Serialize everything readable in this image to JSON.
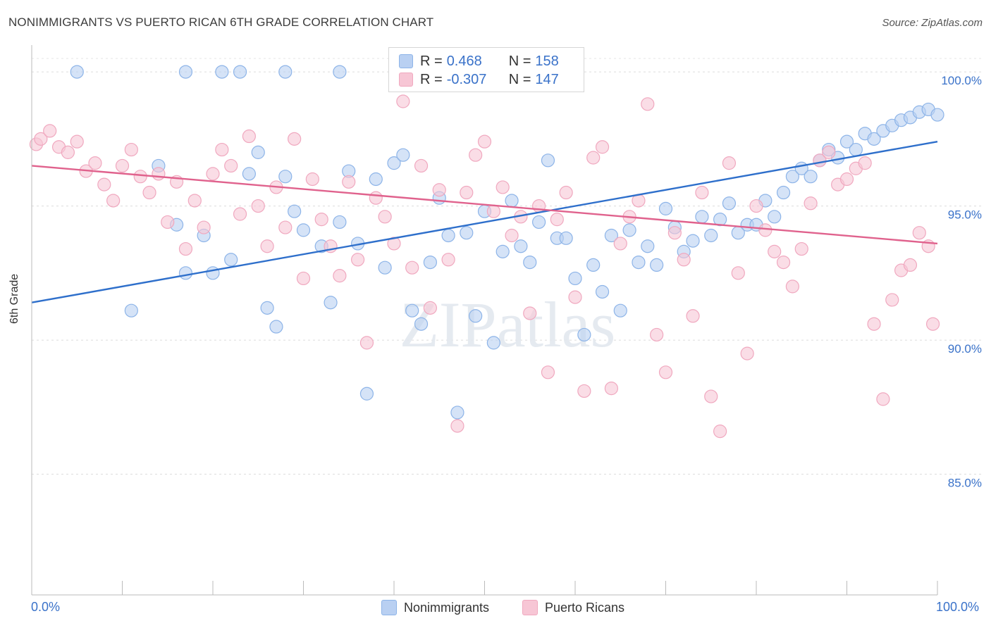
{
  "chart_data": {
    "type": "scatter",
    "title": "NONIMMIGRANTS VS PUERTO RICAN 6TH GRADE CORRELATION CHART",
    "source": "Source: ZipAtlas.com",
    "ylabel": "6th Grade",
    "xlabel": "",
    "xlim": [
      0,
      100
    ],
    "ylim": [
      80.5,
      101
    ],
    "x_tick_labels": [
      "0.0%",
      "100.0%"
    ],
    "y_ticks": [
      85,
      90,
      95,
      100
    ],
    "y_tick_labels": [
      "85.0%",
      "90.0%",
      "95.0%",
      "100.0%"
    ],
    "watermark": "ZIPatlas",
    "legend": {
      "rows": [
        {
          "r_label": "R =",
          "r_value": "0.468",
          "n_label": "N =",
          "n_value": "158"
        },
        {
          "r_label": "R =",
          "r_value": "-0.307",
          "n_label": "N =",
          "n_value": "147"
        }
      ]
    },
    "series": [
      {
        "name": "Nonimmigrants",
        "color": "#8db4e8",
        "fill": "#b9d0f2",
        "line_color": "#2e6fcb",
        "trend": {
          "x": [
            0,
            100
          ],
          "y": [
            91.4,
            97.4
          ]
        },
        "points": [
          [
            5,
            100
          ],
          [
            17,
            100
          ],
          [
            21,
            100
          ],
          [
            23,
            100
          ],
          [
            28,
            100
          ],
          [
            34,
            100
          ],
          [
            11,
            91.1
          ],
          [
            14,
            96.5
          ],
          [
            16,
            94.3
          ],
          [
            17,
            92.5
          ],
          [
            19,
            93.9
          ],
          [
            20,
            92.5
          ],
          [
            22,
            93.0
          ],
          [
            24,
            96.2
          ],
          [
            25,
            97.0
          ],
          [
            26,
            91.2
          ],
          [
            27,
            90.5
          ],
          [
            28,
            96.1
          ],
          [
            29,
            94.8
          ],
          [
            30,
            94.1
          ],
          [
            32,
            93.5
          ],
          [
            33,
            91.4
          ],
          [
            34,
            94.4
          ],
          [
            35,
            96.3
          ],
          [
            36,
            93.6
          ],
          [
            37,
            88.0
          ],
          [
            38,
            96.0
          ],
          [
            39,
            92.7
          ],
          [
            40,
            96.6
          ],
          [
            41,
            96.9
          ],
          [
            42,
            91.1
          ],
          [
            43,
            90.6
          ],
          [
            44,
            92.9
          ],
          [
            45,
            95.3
          ],
          [
            46,
            93.9
          ],
          [
            47,
            87.3
          ],
          [
            48,
            94.0
          ],
          [
            49,
            90.9
          ],
          [
            50,
            94.8
          ],
          [
            51,
            89.9
          ],
          [
            52,
            93.3
          ],
          [
            53,
            95.2
          ],
          [
            54,
            93.5
          ],
          [
            55,
            92.9
          ],
          [
            56,
            94.4
          ],
          [
            57,
            96.7
          ],
          [
            58,
            93.8
          ],
          [
            59,
            93.8
          ],
          [
            60,
            92.3
          ],
          [
            61,
            90.2
          ],
          [
            62,
            92.8
          ],
          [
            63,
            91.8
          ],
          [
            64,
            93.9
          ],
          [
            65,
            91.1
          ],
          [
            66,
            94.1
          ],
          [
            67,
            92.9
          ],
          [
            68,
            93.5
          ],
          [
            69,
            92.8
          ],
          [
            70,
            94.9
          ],
          [
            71,
            94.2
          ],
          [
            72,
            93.3
          ],
          [
            73,
            93.7
          ],
          [
            74,
            94.6
          ],
          [
            75,
            93.9
          ],
          [
            76,
            94.5
          ],
          [
            77,
            95.1
          ],
          [
            78,
            94.0
          ],
          [
            79,
            94.3
          ],
          [
            80,
            94.3
          ],
          [
            81,
            95.2
          ],
          [
            82,
            94.6
          ],
          [
            83,
            95.5
          ],
          [
            84,
            96.1
          ],
          [
            85,
            96.4
          ],
          [
            86,
            96.1
          ],
          [
            87,
            96.7
          ],
          [
            88,
            97.1
          ],
          [
            89,
            96.8
          ],
          [
            90,
            97.4
          ],
          [
            91,
            97.1
          ],
          [
            92,
            97.7
          ],
          [
            93,
            97.5
          ],
          [
            94,
            97.8
          ],
          [
            95,
            98.0
          ],
          [
            96,
            98.2
          ],
          [
            97,
            98.3
          ],
          [
            98,
            98.5
          ],
          [
            99,
            98.6
          ],
          [
            100,
            98.4
          ]
        ]
      },
      {
        "name": "Puerto Ricans",
        "color": "#f0a8bf",
        "fill": "#f7c6d5",
        "line_color": "#e0628d",
        "trend": {
          "x": [
            0,
            100
          ],
          "y": [
            96.5,
            93.6
          ]
        },
        "points": [
          [
            0.5,
            97.3
          ],
          [
            1,
            97.5
          ],
          [
            2,
            97.8
          ],
          [
            3,
            97.2
          ],
          [
            4,
            97.0
          ],
          [
            5,
            97.4
          ],
          [
            6,
            96.3
          ],
          [
            7,
            96.6
          ],
          [
            8,
            95.8
          ],
          [
            9,
            95.2
          ],
          [
            10,
            96.5
          ],
          [
            11,
            97.1
          ],
          [
            12,
            96.1
          ],
          [
            13,
            95.5
          ],
          [
            14,
            96.2
          ],
          [
            15,
            94.4
          ],
          [
            16,
            95.9
          ],
          [
            17,
            93.4
          ],
          [
            18,
            95.2
          ],
          [
            19,
            94.2
          ],
          [
            20,
            96.2
          ],
          [
            21,
            97.1
          ],
          [
            22,
            96.5
          ],
          [
            23,
            94.7
          ],
          [
            24,
            97.6
          ],
          [
            25,
            95.0
          ],
          [
            26,
            93.5
          ],
          [
            27,
            95.7
          ],
          [
            28,
            94.2
          ],
          [
            29,
            97.5
          ],
          [
            30,
            92.3
          ],
          [
            31,
            96.0
          ],
          [
            32,
            94.5
          ],
          [
            33,
            93.5
          ],
          [
            34,
            92.4
          ],
          [
            35,
            95.9
          ],
          [
            36,
            93.0
          ],
          [
            37,
            89.9
          ],
          [
            38,
            95.3
          ],
          [
            39,
            94.6
          ],
          [
            40,
            93.6
          ],
          [
            41,
            98.9
          ],
          [
            42,
            92.7
          ],
          [
            43,
            96.5
          ],
          [
            44,
            91.2
          ],
          [
            45,
            95.6
          ],
          [
            46,
            93.0
          ],
          [
            47,
            86.8
          ],
          [
            48,
            95.5
          ],
          [
            49,
            96.9
          ],
          [
            50,
            97.4
          ],
          [
            51,
            94.8
          ],
          [
            52,
            95.7
          ],
          [
            53,
            93.9
          ],
          [
            54,
            94.6
          ],
          [
            55,
            91.0
          ],
          [
            56,
            95.0
          ],
          [
            57,
            88.8
          ],
          [
            58,
            94.5
          ],
          [
            59,
            95.5
          ],
          [
            60,
            91.6
          ],
          [
            61,
            88.1
          ],
          [
            62,
            96.8
          ],
          [
            63,
            97.2
          ],
          [
            64,
            88.2
          ],
          [
            65,
            93.6
          ],
          [
            66,
            94.6
          ],
          [
            67,
            95.2
          ],
          [
            68,
            98.8
          ],
          [
            69,
            90.2
          ],
          [
            70,
            88.8
          ],
          [
            71,
            94.0
          ],
          [
            72,
            93.0
          ],
          [
            73,
            90.9
          ],
          [
            74,
            95.5
          ],
          [
            75,
            87.9
          ],
          [
            76,
            86.6
          ],
          [
            77,
            96.6
          ],
          [
            78,
            92.5
          ],
          [
            79,
            89.5
          ],
          [
            80,
            95.0
          ],
          [
            81,
            94.1
          ],
          [
            82,
            93.3
          ],
          [
            83,
            92.9
          ],
          [
            84,
            92.0
          ],
          [
            85,
            93.4
          ],
          [
            86,
            95.1
          ],
          [
            87,
            96.7
          ],
          [
            88,
            97.0
          ],
          [
            89,
            95.8
          ],
          [
            90,
            96.0
          ],
          [
            91,
            96.4
          ],
          [
            92,
            96.6
          ],
          [
            93,
            90.6
          ],
          [
            94,
            87.8
          ],
          [
            95,
            91.5
          ],
          [
            96,
            92.6
          ],
          [
            97,
            92.8
          ],
          [
            98,
            94.0
          ],
          [
            99,
            93.5
          ],
          [
            99.5,
            90.6
          ]
        ]
      }
    ]
  }
}
